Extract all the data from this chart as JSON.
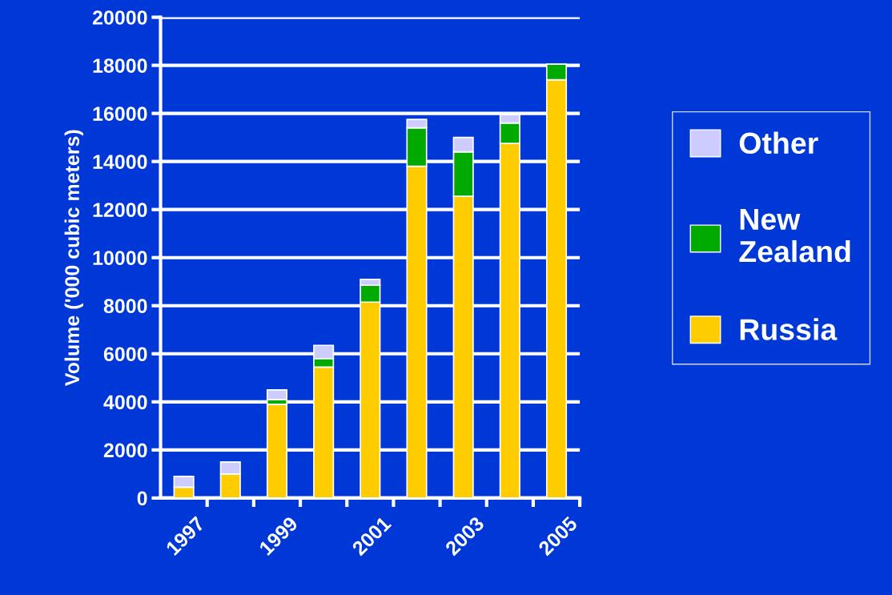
{
  "chart_data": {
    "type": "bar",
    "stacked": true,
    "ylabel": "Volume ('000 cubic meters)",
    "categories": [
      "1997",
      null,
      "1999",
      null,
      "2001",
      null,
      "2003",
      null,
      "2005"
    ],
    "series": [
      {
        "name": "Russia",
        "color": "#ffcc00",
        "values": [
          450,
          1000,
          3900,
          5450,
          8150,
          13800,
          12550,
          14750,
          17400
        ]
      },
      {
        "name": "New Zealand",
        "color": "#00aa00",
        "values": [
          null,
          null,
          200,
          350,
          700,
          1600,
          1850,
          850,
          650
        ]
      },
      {
        "name": "Other",
        "color": "#ccccff",
        "values": [
          450,
          500,
          400,
          550,
          250,
          350,
          600,
          350,
          null
        ]
      }
    ],
    "ylim": [
      0,
      20000
    ],
    "yticks": [
      0,
      2000,
      4000,
      6000,
      8000,
      10000,
      12000,
      14000,
      16000,
      18000,
      20000
    ],
    "grid": "y",
    "legend": "right"
  }
}
